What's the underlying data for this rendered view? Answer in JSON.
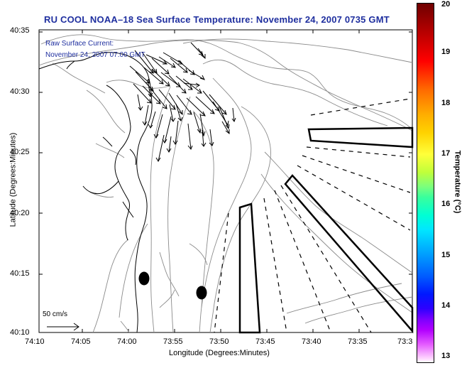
{
  "title": "RU COOL  NOAA–18  Sea Surface Temperature:  November 24, 2007 0735 GMT",
  "current_label_1": "Raw Surface Current:",
  "current_label_2": "November 24, 2007 07:00 GMT",
  "scale_label": "50 cm/s",
  "axes": {
    "x_label": "Longitude (Degrees:Minutes)",
    "y_label": "Latitude (Degrees:Minutes)",
    "x_ticks": [
      "74:10",
      "74:05",
      "74:00",
      "73:55",
      "73:50",
      "73:45",
      "73:40",
      "73:35",
      "73:3"
    ],
    "y_ticks": [
      "40:35",
      "40:30",
      "40:25",
      "40:20",
      "40:15",
      "40:10"
    ]
  },
  "colorbar": {
    "label": "Temperature (°C)",
    "ticks": [
      "20",
      "19",
      "18",
      "17",
      "16",
      "15",
      "14",
      "13"
    ],
    "range": [
      13,
      20
    ]
  },
  "colors": {
    "title": "#1f2f9f",
    "annotation": "#1f2f9f",
    "contour": "#8a8a8a",
    "coast": "#000000"
  }
}
